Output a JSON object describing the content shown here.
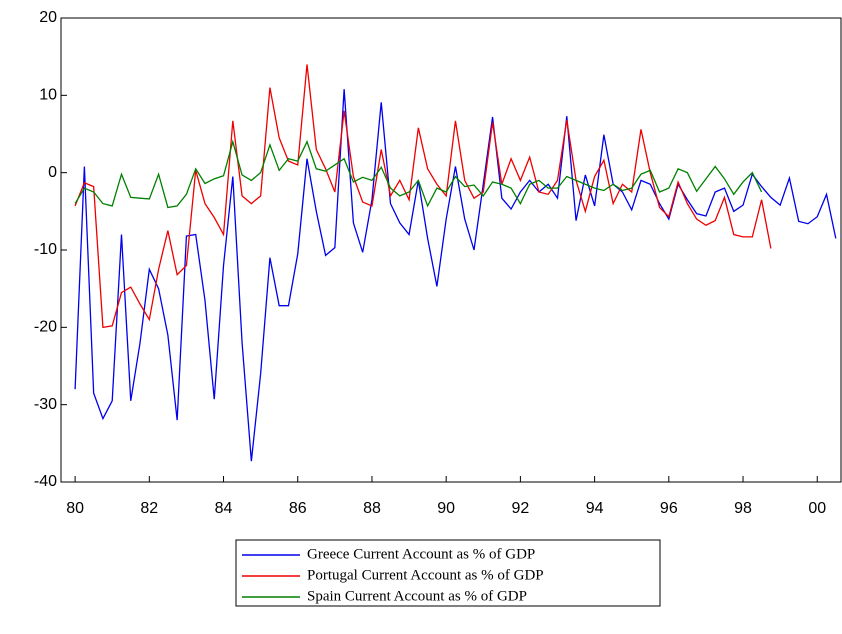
{
  "chart_data": {
    "type": "line",
    "x": [
      1980,
      1980.25,
      1980.5,
      1980.75,
      1981,
      1981.25,
      1981.5,
      1981.75,
      1982,
      1982.25,
      1982.5,
      1982.75,
      1983,
      1983.25,
      1983.5,
      1983.75,
      1984,
      1984.25,
      1984.5,
      1984.75,
      1985,
      1985.25,
      1985.5,
      1985.75,
      1986,
      1986.25,
      1986.5,
      1986.75,
      1987,
      1987.25,
      1987.5,
      1987.75,
      1988,
      1988.25,
      1988.5,
      1988.75,
      1989,
      1989.25,
      1989.5,
      1989.75,
      1990,
      1990.25,
      1990.5,
      1990.75,
      1991,
      1991.25,
      1991.5,
      1991.75,
      1992,
      1992.25,
      1992.5,
      1992.75,
      1993,
      1993.25,
      1993.5,
      1993.75,
      1994,
      1994.25,
      1994.5,
      1994.75,
      1995,
      1995.25,
      1995.5,
      1995.75,
      1996,
      1996.25,
      1996.5,
      1996.75,
      1997,
      1997.25,
      1997.5,
      1997.75,
      1998,
      1998.25,
      1998.5,
      1998.75,
      1999,
      1999.25,
      1999.5,
      1999.75,
      2000,
      2000.25,
      2000.5
    ],
    "series": [
      {
        "name": "Greece Current Account as % of GDP",
        "color": "#0000ee",
        "values": [
          -28,
          0.8,
          -28.5,
          -31.8,
          -29.5,
          -8,
          -29.5,
          -22,
          -12.5,
          -15,
          -21,
          -32,
          -8.2,
          -8,
          -16.5,
          -29.3,
          -12,
          -0.5,
          -22,
          -37.3,
          -26,
          -11,
          -17.2,
          -17.2,
          -10.5,
          1.8,
          -5,
          -10.7,
          -9.7,
          10.8,
          -6.5,
          -10.3,
          -3.5,
          9.1,
          -4,
          -6.5,
          -8,
          -1,
          -8.5,
          -14.7,
          -6,
          0.8,
          -6,
          -10,
          -1.5,
          7.2,
          -3.3,
          -4.7,
          -2.5,
          -1,
          -2.5,
          -1.5,
          -3.3,
          7.3,
          -6.2,
          -0.3,
          -4.3,
          4.9,
          -1.5,
          -2.5,
          -4.8,
          -1,
          -1.5,
          -4,
          -6,
          -1.5,
          -3.5,
          -5.3,
          -5.6,
          -2.5,
          -2,
          -5,
          -4.2,
          -0.2,
          -1.8,
          -3.2,
          -4.2,
          -0.7,
          -6.3,
          -6.6,
          -5.7,
          -2.8,
          -8.5
        ]
      },
      {
        "name": "Portugal Current Account as % of GDP",
        "color": "#ee0000",
        "values": [
          -4.3,
          -1.3,
          -1.8,
          -20,
          -19.8,
          -15.5,
          -14.8,
          -17,
          -19,
          -12.5,
          -7.5,
          -13.2,
          -12,
          0.3,
          -4,
          -5.8,
          -8,
          6.7,
          -3,
          -4,
          -3,
          11,
          4.5,
          1.5,
          1,
          14,
          3,
          0.5,
          -2.5,
          8,
          -0.5,
          -3.8,
          -4.3,
          3,
          -3,
          -1,
          -3.5,
          5.8,
          0.5,
          -1.5,
          -3,
          6.7,
          -1,
          -3.3,
          -2.5,
          6.5,
          -1.5,
          1.8,
          -1,
          2,
          -2.5,
          -2.8,
          -1,
          6.8,
          -1,
          -5,
          -0.5,
          1.6,
          -4,
          -1.5,
          -2.5,
          5.6,
          0,
          -4.5,
          -5.7,
          -1.2,
          -4,
          -6,
          -6.8,
          -6.2,
          -3.2,
          -8,
          -8.3,
          -8.3,
          -3.5,
          -9.8,
          null,
          null,
          null,
          null,
          null,
          null,
          null
        ]
      },
      {
        "name": "Spain Current Account as % of GDP",
        "color": "#008000",
        "values": [
          -4,
          -2,
          -2.5,
          -4,
          -4.3,
          -0.2,
          -3.2,
          -3.3,
          -3.4,
          -0.2,
          -4.5,
          -4.3,
          -2.8,
          0.5,
          -1.4,
          -0.8,
          -0.4,
          4,
          -0.3,
          -1,
          0,
          3.6,
          0.3,
          1.8,
          1.5,
          4,
          0.5,
          0.2,
          1,
          1.8,
          -1.2,
          -0.6,
          -1,
          0.7,
          -2,
          -3,
          -2.5,
          -1,
          -4.3,
          -2,
          -2.5,
          -0.5,
          -1.8,
          -1.6,
          -3,
          -1.2,
          -1.5,
          -2,
          -4,
          -1.5,
          -1,
          -2,
          -2,
          -0.5,
          -1,
          -1.5,
          -2,
          -2.3,
          -1.5,
          -2.3,
          -2,
          -0.2,
          0.3,
          -2.5,
          -2,
          0.5,
          0,
          -2.4,
          -0.8,
          0.8,
          -0.8,
          -2.8,
          -1.2,
          0,
          -2.5,
          null,
          null,
          null,
          null,
          null,
          null,
          null,
          null
        ]
      }
    ],
    "xlim": [
      1979.62,
      2000.64
    ],
    "xticks": [
      {
        "value": 1980,
        "label": "80"
      },
      {
        "value": 1982,
        "label": "82"
      },
      {
        "value": 1984,
        "label": "84"
      },
      {
        "value": 1986,
        "label": "86"
      },
      {
        "value": 1988,
        "label": "88"
      },
      {
        "value": 1990,
        "label": "90"
      },
      {
        "value": 1992,
        "label": "92"
      },
      {
        "value": 1994,
        "label": "94"
      },
      {
        "value": 1996,
        "label": "96"
      },
      {
        "value": 1998,
        "label": "98"
      },
      {
        "value": 2000,
        "label": "00"
      }
    ],
    "ylim": [
      -40,
      20
    ],
    "yticks": [
      -40,
      -30,
      -20,
      -10,
      0,
      10,
      20
    ],
    "legend": "bottom"
  }
}
